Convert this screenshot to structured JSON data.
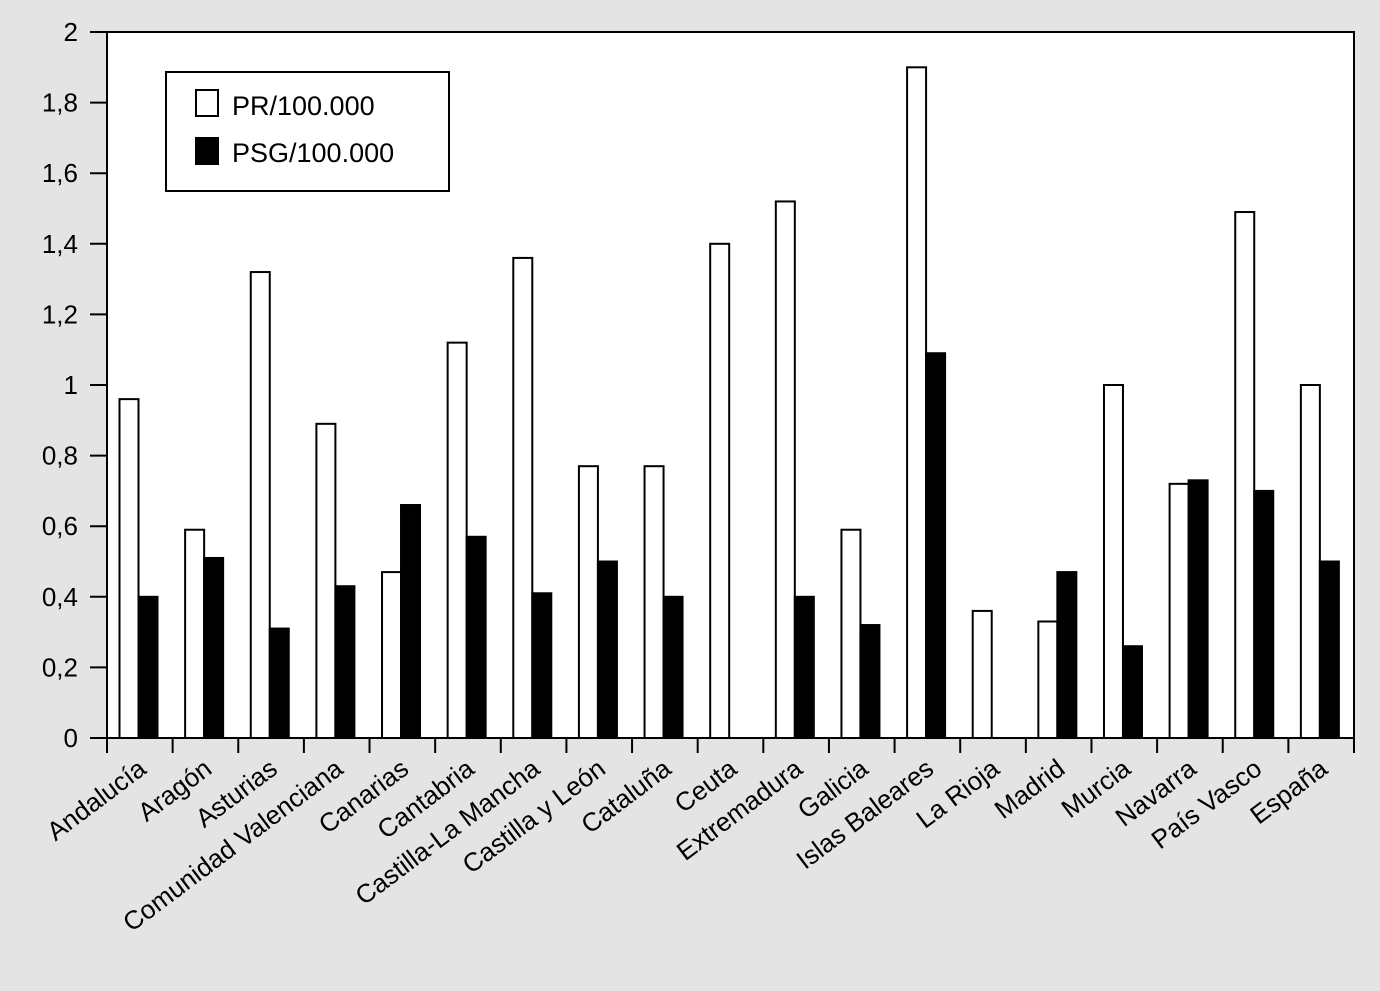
{
  "chart_data": {
    "type": "bar",
    "categories": [
      "Andalucía",
      "Aragón",
      "Asturias",
      "Comunidad Valenciana",
      "Canarias",
      "Cantabria",
      "Castilla-La Mancha",
      "Castilla y León",
      "Cataluña",
      "Ceuta",
      "Extremadura",
      "Galicia",
      "Islas Baleares",
      "La Rioja",
      "Madrid",
      "Murcia",
      "Navarra",
      "País Vasco",
      "España"
    ],
    "series": [
      {
        "name": "PR/100.000",
        "color": "#ffffff",
        "values": [
          0.96,
          0.59,
          1.32,
          0.89,
          0.47,
          1.12,
          1.36,
          0.77,
          0.77,
          1.4,
          1.52,
          0.59,
          1.9,
          0.36,
          0.33,
          1.0,
          0.72,
          1.49,
          1.0
        ]
      },
      {
        "name": "PSG/100.000",
        "color": "#000000",
        "values": [
          0.4,
          0.51,
          0.31,
          0.43,
          0.66,
          0.57,
          0.41,
          0.5,
          0.4,
          0,
          0.4,
          0.32,
          1.09,
          0,
          0.47,
          0.26,
          0.73,
          0.7,
          0.5
        ]
      }
    ],
    "ylim": [
      0,
      2
    ],
    "yticks": [
      "0",
      "0,2",
      "0,4",
      "0,6",
      "0,8",
      "1",
      "1,2",
      "1,4",
      "1,6",
      "1,8",
      "2"
    ],
    "title": "",
    "xlabel": "",
    "ylabel": "",
    "legend": "top-left",
    "grid": false
  }
}
